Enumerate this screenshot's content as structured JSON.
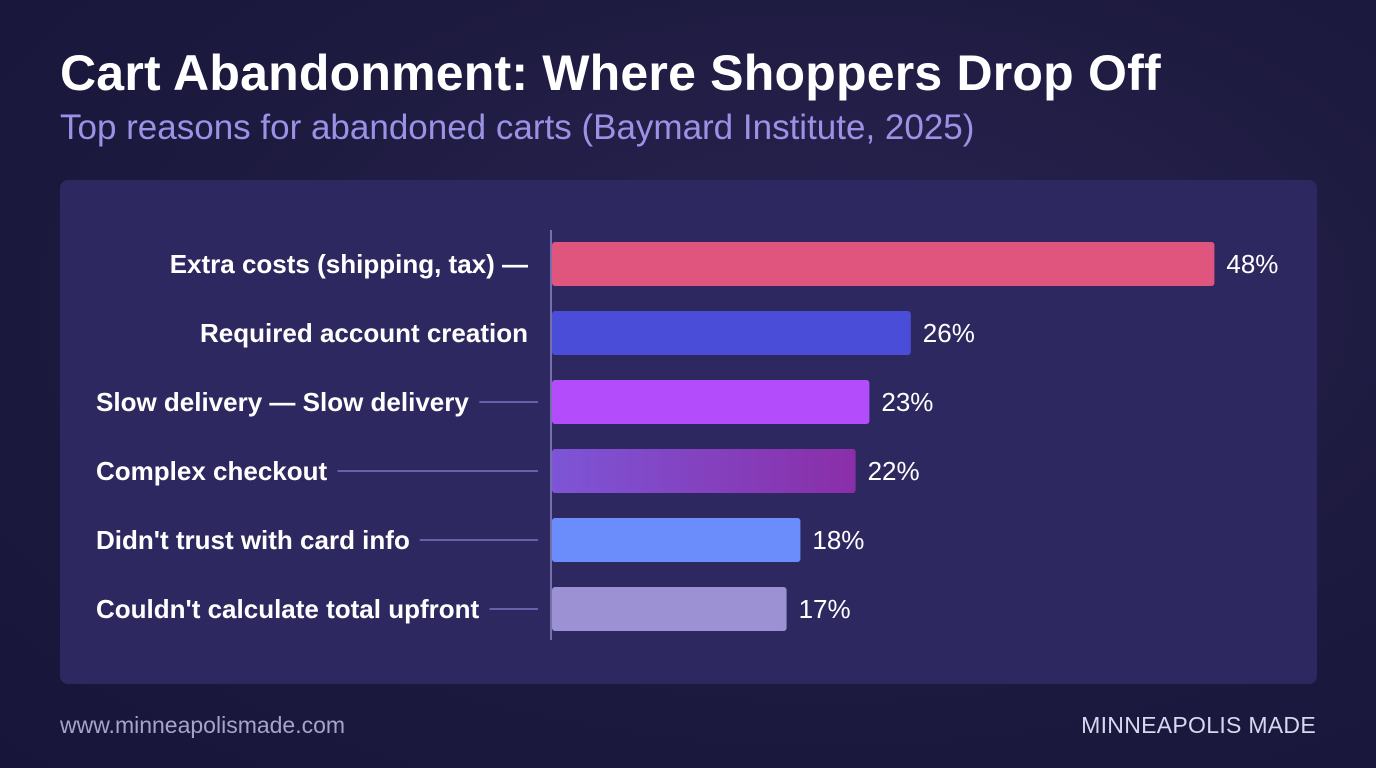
{
  "chart_data": {
    "type": "bar",
    "orientation": "horizontal",
    "title": "Cart Abandonment: Where Shoppers Drop Off",
    "subtitle": "Top reasons for abandoned carts (Baymard Institute, 2025)",
    "categories": [
      "Extra costs (shipping, tax) —",
      "Required account creation",
      "Slow delivery — Slow delivery",
      "Complex checkout",
      "Didn't trust with card info",
      "Couldn't calculate total upfront"
    ],
    "values": [
      48,
      26,
      23,
      22,
      18,
      17
    ],
    "value_labels": [
      "48%",
      "26%",
      "23%",
      "22%",
      "18%",
      "17%"
    ],
    "colors": [
      "#e0557e",
      "#4a4dd8",
      "#b34dfc",
      "#8a3fc0",
      "#6b8cfb",
      "#9b91d3"
    ],
    "xlim": [
      0,
      50
    ],
    "grid": false,
    "legend": "none"
  },
  "footer": {
    "website": "www.minneapolismade.com",
    "brand": "MINNEAPOLIS MADE"
  }
}
